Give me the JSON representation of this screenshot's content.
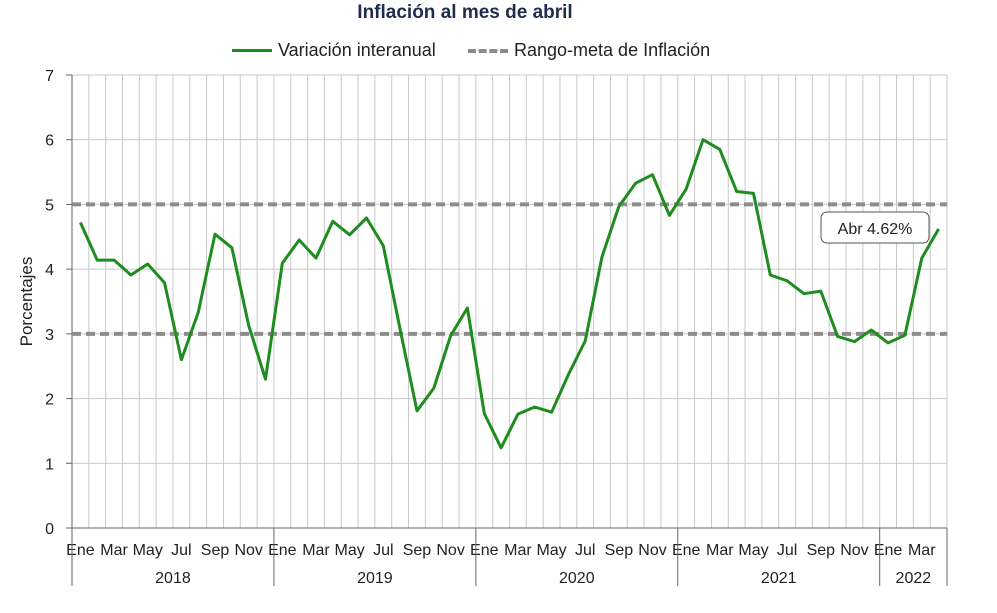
{
  "chart_data": {
    "type": "line",
    "title": "Inflación al mes de abril",
    "ylabel": "Porcentajes",
    "xlabel": "",
    "ylim": [
      0,
      7
    ],
    "yticks": [
      "0",
      "1",
      "2",
      "3",
      "4",
      "5",
      "6",
      "7"
    ],
    "grid": true,
    "legend_position": "top",
    "x_tick_labels": [
      "Ene",
      "Mar",
      "May",
      "Jul",
      "Sep",
      "Nov",
      "Ene",
      "Mar",
      "May",
      "Jul",
      "Sep",
      "Nov",
      "Ene",
      "Mar",
      "May",
      "Jul",
      "Sep",
      "Nov",
      "Ene",
      "Mar",
      "May",
      "Jul",
      "Sep",
      "Nov",
      "Ene",
      "Mar"
    ],
    "years": [
      "2018",
      "2019",
      "2020",
      "2021",
      "2022"
    ],
    "series": [
      {
        "name": "Variación interanual",
        "color": "#1e8c1e",
        "values": [
          4.72,
          4.14,
          4.14,
          3.91,
          4.08,
          3.79,
          2.6,
          3.33,
          4.54,
          4.33,
          3.13,
          2.3,
          4.09,
          4.45,
          4.17,
          4.74,
          4.53,
          4.79,
          4.36,
          3.07,
          1.81,
          2.16,
          2.97,
          3.4,
          1.77,
          1.24,
          1.76,
          1.87,
          1.79,
          2.37,
          2.89,
          4.19,
          4.97,
          5.33,
          5.46,
          4.83,
          5.24,
          6.0,
          5.85,
          5.2,
          5.17,
          3.91,
          3.82,
          3.62,
          3.66,
          2.96,
          2.88,
          3.06,
          2.86,
          2.98,
          4.17,
          4.62
        ]
      },
      {
        "name": "Rango-meta de Inflación",
        "color": "#8c8c8c",
        "dashed": true,
        "bounds": [
          3,
          5
        ]
      }
    ],
    "annotation": "Abr 4.62%"
  }
}
